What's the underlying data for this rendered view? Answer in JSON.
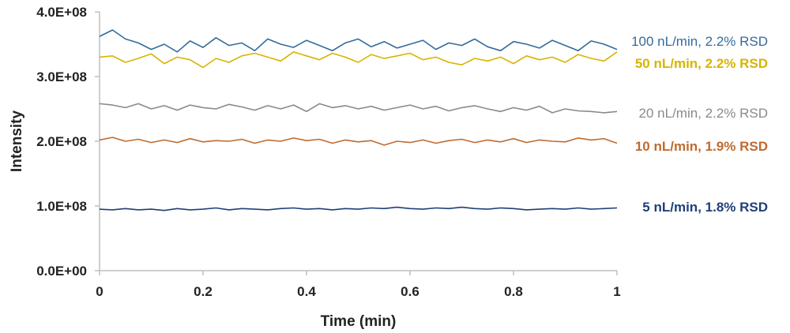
{
  "chart_data": {
    "type": "line",
    "title": "",
    "xlabel": "Time (min)",
    "ylabel": "Intensity",
    "xlim": [
      0,
      1
    ],
    "ylim": [
      0,
      400000000
    ],
    "x_ticks": [
      0,
      0.2,
      0.4,
      0.6,
      0.8,
      1
    ],
    "x_tick_labels": [
      "0",
      "0.2",
      "0.4",
      "0.6",
      "0.8",
      "1"
    ],
    "y_ticks": [
      0,
      100000000,
      200000000,
      300000000,
      400000000
    ],
    "y_tick_labels": [
      "0.0E+00",
      "1.0E+08",
      "2.0E+08",
      "3.0E+08",
      "4.0E+08"
    ],
    "grid": false,
    "legend": "inline-right",
    "x_step": 0.025,
    "value_unit": 100000000,
    "series": [
      {
        "name": "100 nL/min, 2.2% RSD",
        "color": "#336b9c",
        "values": [
          3.62,
          3.72,
          3.58,
          3.52,
          3.42,
          3.5,
          3.38,
          3.55,
          3.45,
          3.6,
          3.48,
          3.52,
          3.4,
          3.58,
          3.5,
          3.45,
          3.56,
          3.48,
          3.4,
          3.52,
          3.58,
          3.46,
          3.54,
          3.44,
          3.5,
          3.56,
          3.42,
          3.52,
          3.48,
          3.58,
          3.46,
          3.4,
          3.54,
          3.5,
          3.44,
          3.56,
          3.48,
          3.4,
          3.55,
          3.5,
          3.42
        ]
      },
      {
        "name": "50 nL/min, 2.2% RSD",
        "color": "#d8b400",
        "values": [
          3.3,
          3.32,
          3.22,
          3.28,
          3.35,
          3.2,
          3.3,
          3.26,
          3.14,
          3.28,
          3.22,
          3.32,
          3.36,
          3.3,
          3.24,
          3.38,
          3.32,
          3.26,
          3.36,
          3.3,
          3.22,
          3.34,
          3.28,
          3.32,
          3.36,
          3.26,
          3.3,
          3.22,
          3.18,
          3.28,
          3.24,
          3.3,
          3.2,
          3.32,
          3.26,
          3.3,
          3.22,
          3.34,
          3.28,
          3.24,
          3.38
        ]
      },
      {
        "name": "20 nL/min, 2.2% RSD",
        "color": "#8a8a8a",
        "values": [
          2.58,
          2.56,
          2.52,
          2.58,
          2.5,
          2.55,
          2.48,
          2.56,
          2.52,
          2.5,
          2.57,
          2.53,
          2.48,
          2.55,
          2.5,
          2.56,
          2.46,
          2.58,
          2.52,
          2.55,
          2.5,
          2.54,
          2.48,
          2.52,
          2.56,
          2.5,
          2.54,
          2.47,
          2.52,
          2.55,
          2.5,
          2.46,
          2.52,
          2.48,
          2.54,
          2.44,
          2.5,
          2.47,
          2.46,
          2.44,
          2.46
        ]
      },
      {
        "name": "10 nL/min, 1.9% RSD",
        "color": "#c06a2e",
        "values": [
          2.02,
          2.06,
          2.0,
          2.03,
          1.98,
          2.02,
          1.98,
          2.04,
          1.99,
          2.01,
          2.0,
          2.03,
          1.97,
          2.02,
          2.0,
          2.05,
          2.01,
          2.03,
          1.97,
          2.02,
          1.99,
          2.01,
          1.94,
          2.0,
          1.98,
          2.02,
          1.97,
          2.01,
          2.03,
          1.98,
          2.02,
          1.99,
          2.04,
          1.98,
          2.02,
          2.0,
          1.99,
          2.05,
          2.02,
          2.04,
          1.97
        ]
      },
      {
        "name": "5 nL/min, 1.8% RSD",
        "color": "#1f3f78",
        "values": [
          0.95,
          0.94,
          0.96,
          0.94,
          0.95,
          0.93,
          0.96,
          0.94,
          0.95,
          0.97,
          0.94,
          0.96,
          0.95,
          0.94,
          0.96,
          0.97,
          0.95,
          0.96,
          0.94,
          0.96,
          0.95,
          0.97,
          0.96,
          0.98,
          0.96,
          0.95,
          0.97,
          0.96,
          0.98,
          0.96,
          0.95,
          0.97,
          0.96,
          0.94,
          0.95,
          0.96,
          0.95,
          0.97,
          0.95,
          0.96,
          0.97
        ]
      }
    ]
  }
}
